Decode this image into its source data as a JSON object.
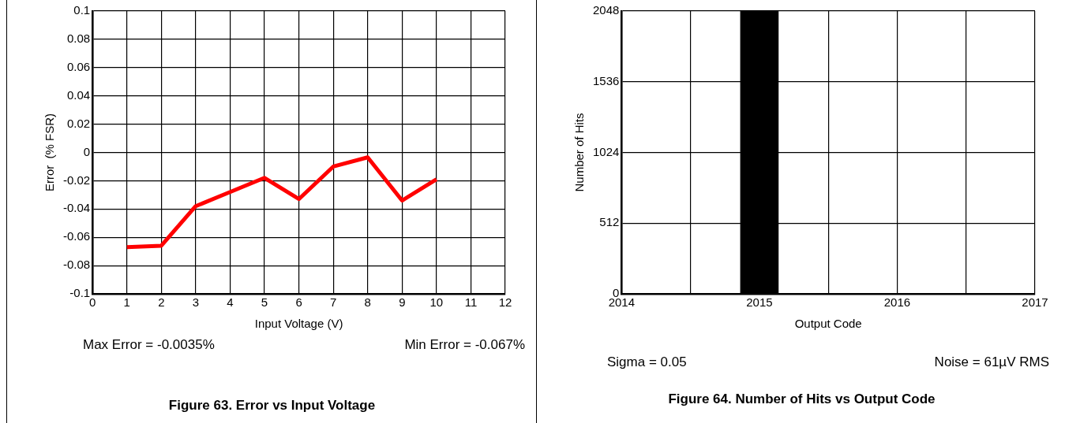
{
  "chart_data": [
    {
      "type": "line",
      "title": "Figure 63. Error vs Input Voltage",
      "xlabel": "Input Voltage (V)",
      "ylabel": "Error  (% FSR)",
      "x": [
        1,
        2,
        3,
        4,
        5,
        6,
        7,
        8,
        9,
        10
      ],
      "series": [
        {
          "color": "#ff0000",
          "values": [
            -0.067,
            -0.066,
            -0.038,
            -0.028,
            -0.018,
            -0.033,
            -0.01,
            -0.0035,
            -0.034,
            -0.019
          ]
        }
      ],
      "xlim": [
        0,
        12
      ],
      "xticks": [
        0,
        1,
        2,
        3,
        4,
        5,
        6,
        7,
        8,
        9,
        10,
        11,
        12
      ],
      "ylim": [
        -0.1,
        0.1
      ],
      "yticks": [
        -0.1,
        -0.08,
        -0.06,
        -0.04,
        -0.02,
        0,
        0.02,
        0.04,
        0.06,
        0.08,
        0.1
      ],
      "grid": true,
      "marker": "none",
      "line_style": "solid",
      "annotations": [
        "Max Error = -0.0035%",
        "Min Error = -0.067%"
      ]
    },
    {
      "type": "bar",
      "title": "Figure 64. Number of Hits vs Output Code",
      "xlabel": "Output Code",
      "ylabel": "Number of Hits",
      "x": [
        2015
      ],
      "series": [
        {
          "color": "#000000",
          "values": [
            2048
          ]
        }
      ],
      "xlim": [
        2014,
        2017
      ],
      "xticks": [
        2014,
        {
          "value": 2014.5,
          "label": null
        },
        2015,
        {
          "value": 2015.5,
          "label": null
        },
        2016,
        {
          "value": 2016.5,
          "label": null
        },
        2017
      ],
      "ylim": [
        0,
        2048
      ],
      "yticks": [
        0,
        512,
        1024,
        1536,
        2048
      ],
      "grid": true,
      "annotations": [
        "Sigma = 0.05",
        "Noise = 61µV RMS"
      ]
    }
  ]
}
